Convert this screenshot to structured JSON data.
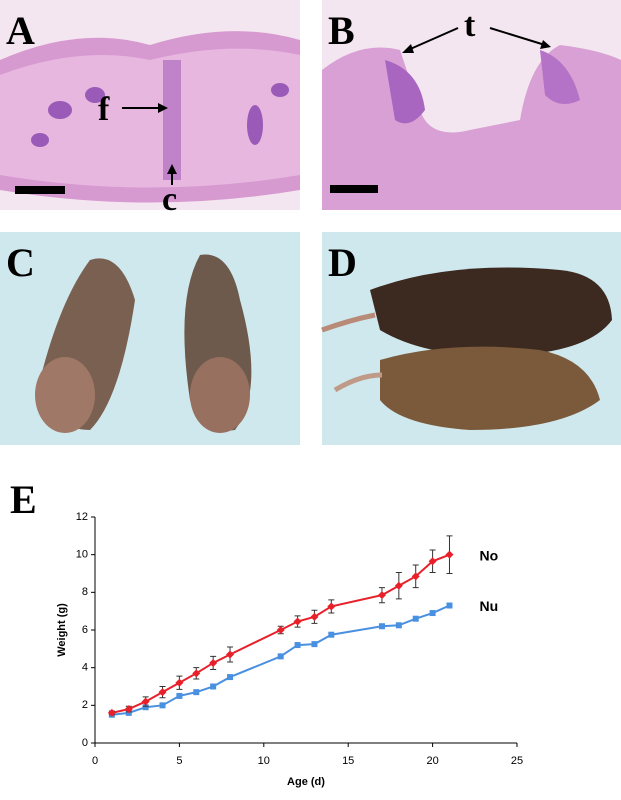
{
  "panels": [
    {
      "label": "A",
      "annotations": [
        "f",
        "c"
      ]
    },
    {
      "label": "B",
      "annotations": [
        "t"
      ]
    },
    {
      "label": "C"
    },
    {
      "label": "D"
    },
    {
      "label": "E"
    }
  ],
  "chart_data": {
    "type": "line",
    "xlabel": "Age (d)",
    "ylabel": "Weight (g)",
    "x": [
      1,
      2,
      3,
      4,
      5,
      6,
      7,
      8,
      11,
      12,
      13,
      14,
      17,
      18,
      19,
      20,
      21
    ],
    "series": [
      {
        "name": "No",
        "color": "#e8202a",
        "marker": "diamond",
        "values": [
          1.6,
          1.8,
          2.2,
          2.7,
          3.2,
          3.7,
          4.25,
          4.7,
          6.0,
          6.45,
          6.7,
          7.25,
          7.85,
          8.35,
          8.85,
          9.65,
          10.0
        ],
        "errors": [
          0.1,
          0.15,
          0.25,
          0.3,
          0.35,
          0.3,
          0.35,
          0.4,
          0.2,
          0.3,
          0.35,
          0.35,
          0.4,
          0.7,
          0.6,
          0.6,
          1.0
        ]
      },
      {
        "name": "Nu",
        "color": "#4a90e0",
        "marker": "square",
        "values": [
          1.5,
          1.6,
          1.9,
          2.0,
          2.5,
          2.7,
          3.0,
          3.5,
          4.6,
          5.2,
          5.25,
          5.75,
          6.2,
          6.25,
          6.6,
          6.9,
          7.3
        ]
      }
    ],
    "xlim": [
      0,
      25
    ],
    "xticks": [
      0,
      5,
      10,
      15,
      20,
      25
    ],
    "ylim": [
      0,
      12
    ],
    "yticks": [
      0,
      2,
      4,
      6,
      8,
      10,
      12
    ]
  }
}
